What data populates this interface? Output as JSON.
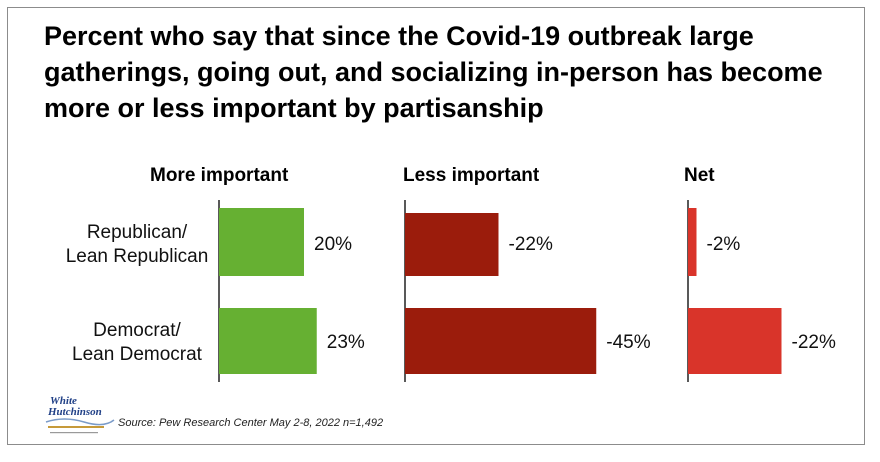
{
  "title": "Percent who say that since the Covid-19 outbreak large gatherings, going out, and socializing in-person has become more or less important by partisanship",
  "source": "Source: Pew Research Center May 2-8, 2022 n=1,492",
  "logo_text": {
    "line1": "White",
    "line2": "Hutchinson"
  },
  "colors": {
    "more": "#66b032",
    "less": "#9b1c0c",
    "net": "#d9342a",
    "axis": "#222222"
  },
  "chart_data": {
    "type": "bar",
    "orientation": "horizontal",
    "categories": [
      {
        "line1": "Republican/",
        "line2": "Lean Republican"
      },
      {
        "line1": "Democrat/",
        "line2": "Lean Democrat"
      }
    ],
    "panels": [
      {
        "name": "More important",
        "values": [
          20,
          23
        ],
        "labels": [
          "20%",
          "23%"
        ],
        "color": "#66b032"
      },
      {
        "name": "Less important",
        "values": [
          -22,
          -45
        ],
        "labels": [
          "-22%",
          "-45%"
        ],
        "color": "#9b1c0c"
      },
      {
        "name": "Net",
        "values": [
          -2,
          -22
        ],
        "labels": [
          "-2%",
          "-22%"
        ],
        "color": "#d9342a"
      }
    ],
    "title": "",
    "xlabel": "",
    "ylabel": ""
  }
}
